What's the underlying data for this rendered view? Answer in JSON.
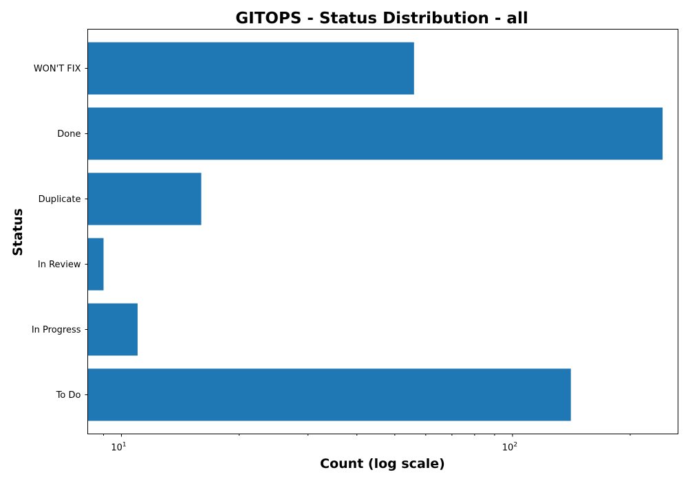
{
  "chart_data": {
    "type": "bar",
    "orientation": "horizontal",
    "title": "GITOPS - Status Distribution - all",
    "xlabel": "Count (log scale)",
    "ylabel": "Status",
    "x_scale": "log",
    "xlim": [
      8.2,
      265
    ],
    "x_ticks": [
      {
        "value": 10,
        "label_base": "10",
        "label_exp": "1"
      },
      {
        "value": 100,
        "label_base": "10",
        "label_exp": "2"
      }
    ],
    "categories": [
      "To Do",
      "In Progress",
      "In Review",
      "Duplicate",
      "WON'T FIX",
      "Done"
    ],
    "display_order_top_to_bottom": [
      "WON'T FIX",
      "Done",
      "Duplicate",
      "In Review",
      "In Progress",
      "To Do"
    ],
    "values": {
      "To Do": 141,
      "In Progress": 11,
      "In Review": 9,
      "Duplicate": 16,
      "WON'T FIX": 56,
      "Done": 242
    },
    "bar_color": "#1f77b4",
    "grid": false,
    "legend": "none"
  }
}
